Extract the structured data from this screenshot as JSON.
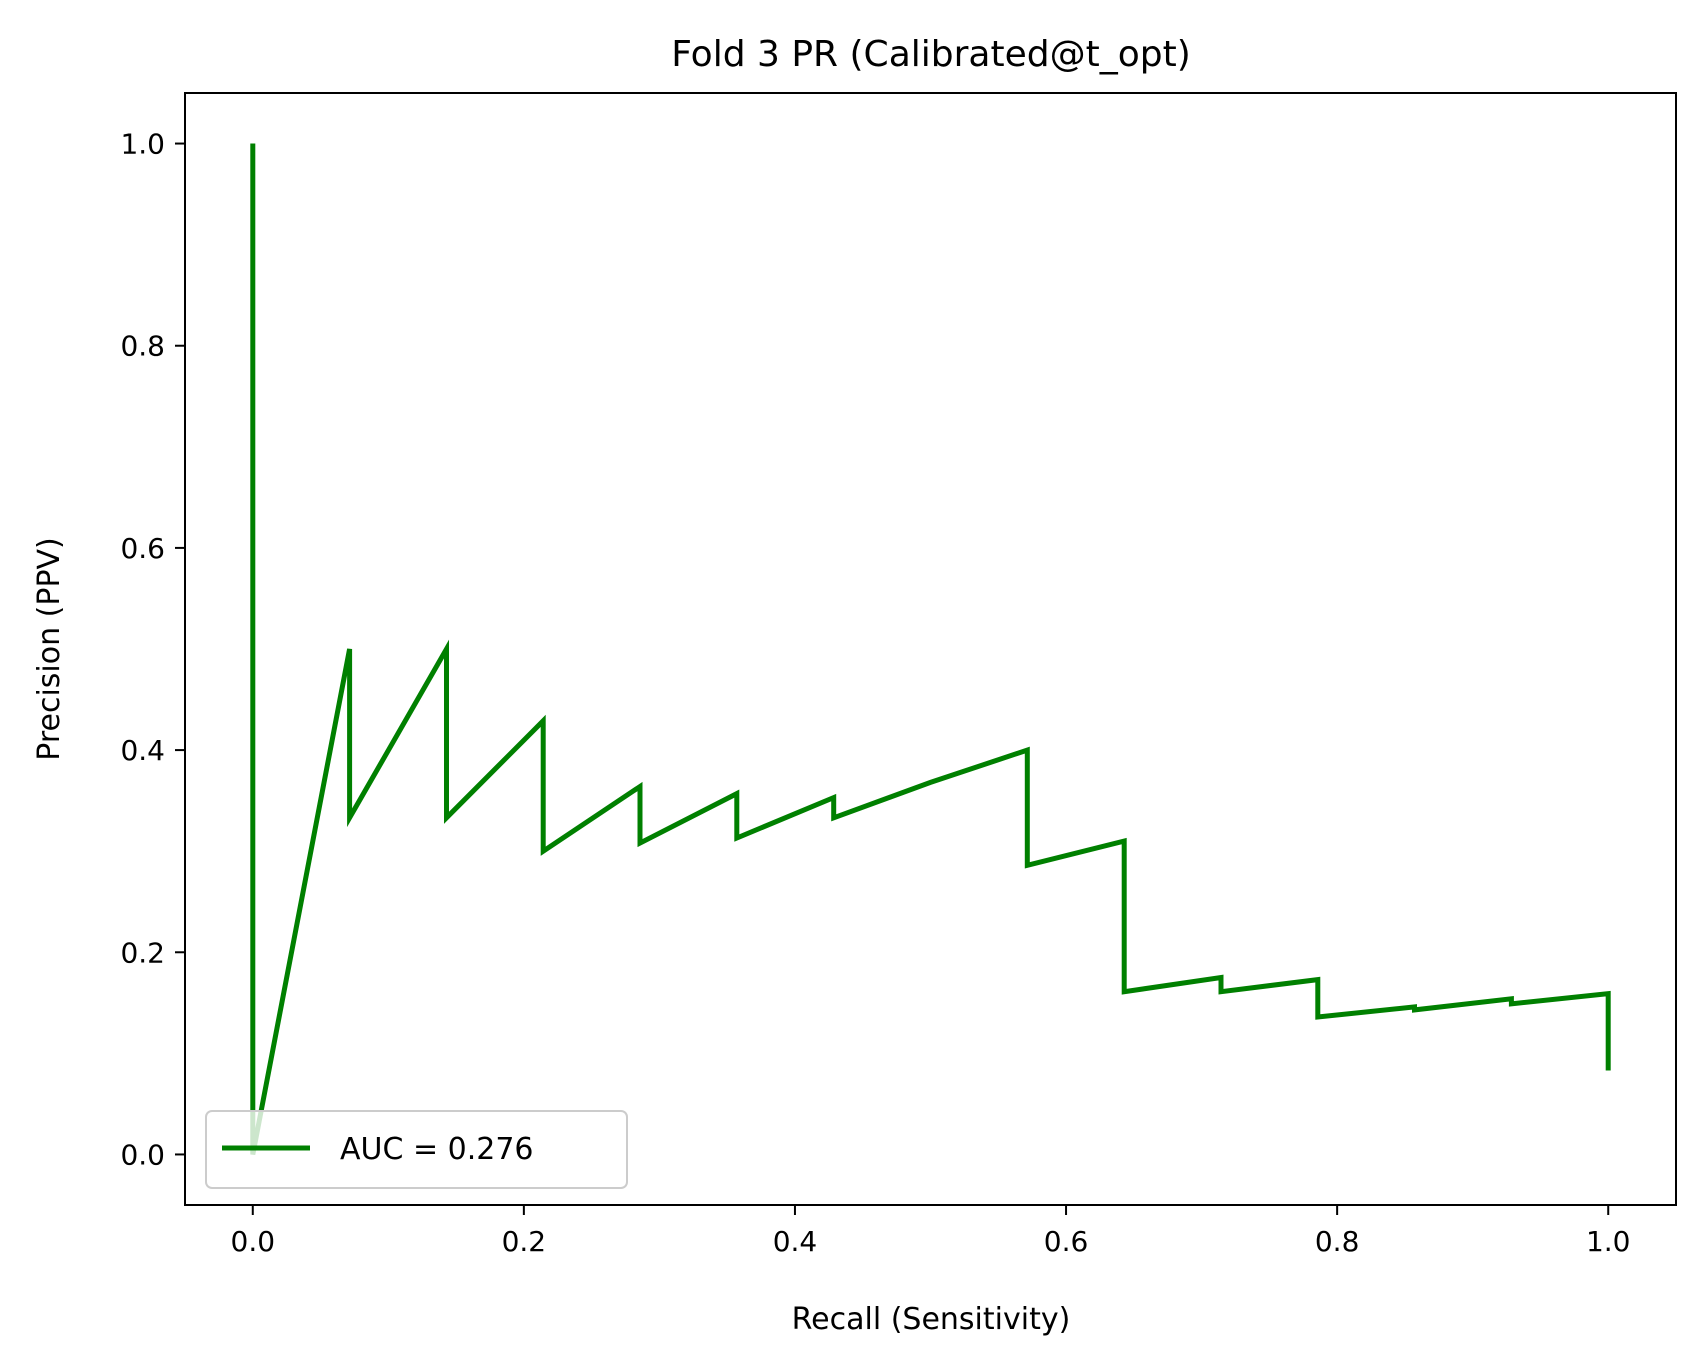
{
  "chart_data": {
    "type": "line",
    "title": "Fold 3 PR (Calibrated@t_opt)",
    "xlabel": "Recall (Sensitivity)",
    "ylabel": "Precision (PPV)",
    "xlim": [
      -0.05,
      1.05
    ],
    "ylim": [
      -0.05,
      1.05
    ],
    "xticks": [
      0.0,
      0.2,
      0.4,
      0.6,
      0.8,
      1.0
    ],
    "yticks": [
      0.0,
      0.2,
      0.4,
      0.6,
      0.8,
      1.0
    ],
    "xtick_labels": [
      "0.0",
      "0.2",
      "0.4",
      "0.6",
      "0.8",
      "1.0"
    ],
    "ytick_labels": [
      "0.0",
      "0.2",
      "0.4",
      "0.6",
      "0.8",
      "1.0"
    ],
    "grid": false,
    "legend_position": "lower-left",
    "series": [
      {
        "name": "AUC = 0.276",
        "color": "#008000",
        "points": [
          [
            0.0,
            1.0
          ],
          [
            0.0,
            0.0
          ],
          [
            0.0714,
            0.5
          ],
          [
            0.0714,
            0.333
          ],
          [
            0.1429,
            0.5
          ],
          [
            0.1429,
            0.333
          ],
          [
            0.2143,
            0.429
          ],
          [
            0.2143,
            0.3
          ],
          [
            0.2857,
            0.364
          ],
          [
            0.2857,
            0.308
          ],
          [
            0.3571,
            0.357
          ],
          [
            0.3571,
            0.313
          ],
          [
            0.4286,
            0.353
          ],
          [
            0.4286,
            0.333
          ],
          [
            0.5,
            0.368
          ],
          [
            0.5714,
            0.4
          ],
          [
            0.5714,
            0.286
          ],
          [
            0.6429,
            0.31
          ],
          [
            0.6429,
            0.161
          ],
          [
            0.7143,
            0.175
          ],
          [
            0.7143,
            0.161
          ],
          [
            0.7857,
            0.173
          ],
          [
            0.7857,
            0.136
          ],
          [
            0.8571,
            0.146
          ],
          [
            0.8571,
            0.143
          ],
          [
            0.9286,
            0.154
          ],
          [
            0.9286,
            0.149
          ],
          [
            1.0,
            0.159
          ],
          [
            1.0,
            0.083
          ]
        ]
      }
    ]
  }
}
